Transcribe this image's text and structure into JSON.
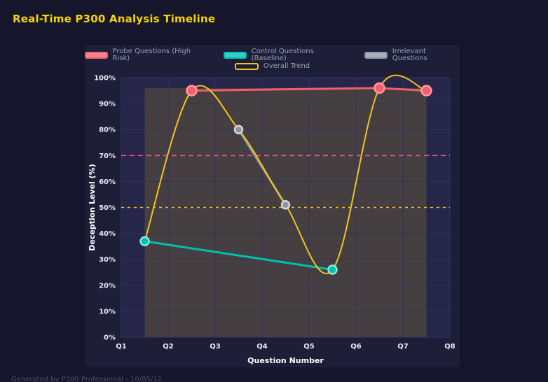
{
  "page": {
    "title": "Real-Time P300 Analysis Timeline",
    "footer": "Generated by P300 Professional - 10/05/12",
    "colors": {
      "background": "#15152b",
      "card": "#1e1e39",
      "plot": "#26264a",
      "grid": "#32325c",
      "title": "#f5d400",
      "legend_text": "#9aa0b4",
      "tick_text": "#e9ebf2",
      "axis_title": "#ffffff"
    }
  },
  "chart_data": {
    "type": "line",
    "title": "Real-Time P300 Analysis Timeline",
    "xlabel": "Question Number",
    "ylabel": "Deception Level (%)",
    "x_ticks": [
      "Q1",
      "Q2",
      "Q3",
      "Q4",
      "Q5",
      "Q6",
      "Q7",
      "Q8"
    ],
    "x_range": [
      1,
      8
    ],
    "ylim": [
      0,
      100
    ],
    "y_tick_step": 10,
    "y_tick_suffix": "%",
    "grid": true,
    "legend_position": "top",
    "series": [
      {
        "name": "Probe Questions (High Risk)",
        "color": "#f25f6b",
        "legend_fill": "#f4858e",
        "marker_stroke": "#ff9aa2",
        "smooth": false,
        "line_width": 3,
        "marker_radius": 7,
        "points": [
          {
            "x": 2.5,
            "y": 95
          },
          {
            "x": 6.5,
            "y": 96
          },
          {
            "x": 7.5,
            "y": 95
          }
        ]
      },
      {
        "name": "Control Questions (Baseline)",
        "color": "#00bfae",
        "legend_fill": "#33cfc2",
        "marker_stroke": "#8ae8dd",
        "smooth": false,
        "line_width": 3,
        "marker_radius": 6,
        "points": [
          {
            "x": 1.5,
            "y": 37
          },
          {
            "x": 5.5,
            "y": 26
          }
        ]
      },
      {
        "name": "Irrelevant Questions",
        "color": "#8d93a3",
        "legend_fill": "#aab0bc",
        "marker_stroke": "#d2d6dd",
        "smooth": false,
        "line_width": 3,
        "marker_radius": 5.5,
        "points": [
          {
            "x": 3.5,
            "y": 80
          },
          {
            "x": 4.5,
            "y": 51
          }
        ]
      },
      {
        "name": "Overall Trend",
        "color": "#f0c419",
        "legend_fill": "transparent",
        "marker_stroke": "",
        "smooth": true,
        "line_width": 2,
        "marker_radius": 0,
        "points": [
          {
            "x": 1.5,
            "y": 37
          },
          {
            "x": 2.5,
            "y": 95
          },
          {
            "x": 3.5,
            "y": 80
          },
          {
            "x": 4.5,
            "y": 51
          },
          {
            "x": 5.5,
            "y": 26
          },
          {
            "x": 6.5,
            "y": 96
          },
          {
            "x": 7.5,
            "y": 95
          }
        ]
      }
    ],
    "thresholds": [
      {
        "value": 70,
        "color": "#f2547e",
        "dash": "7 5"
      },
      {
        "value": 50,
        "color": "#f0c419",
        "dash": "4 5"
      }
    ],
    "shaded_region": {
      "x_from": 1.5,
      "x_to": 7.5,
      "y_from": 0,
      "y_to": 96,
      "color": "rgba(240,196,25,0.16)"
    }
  }
}
